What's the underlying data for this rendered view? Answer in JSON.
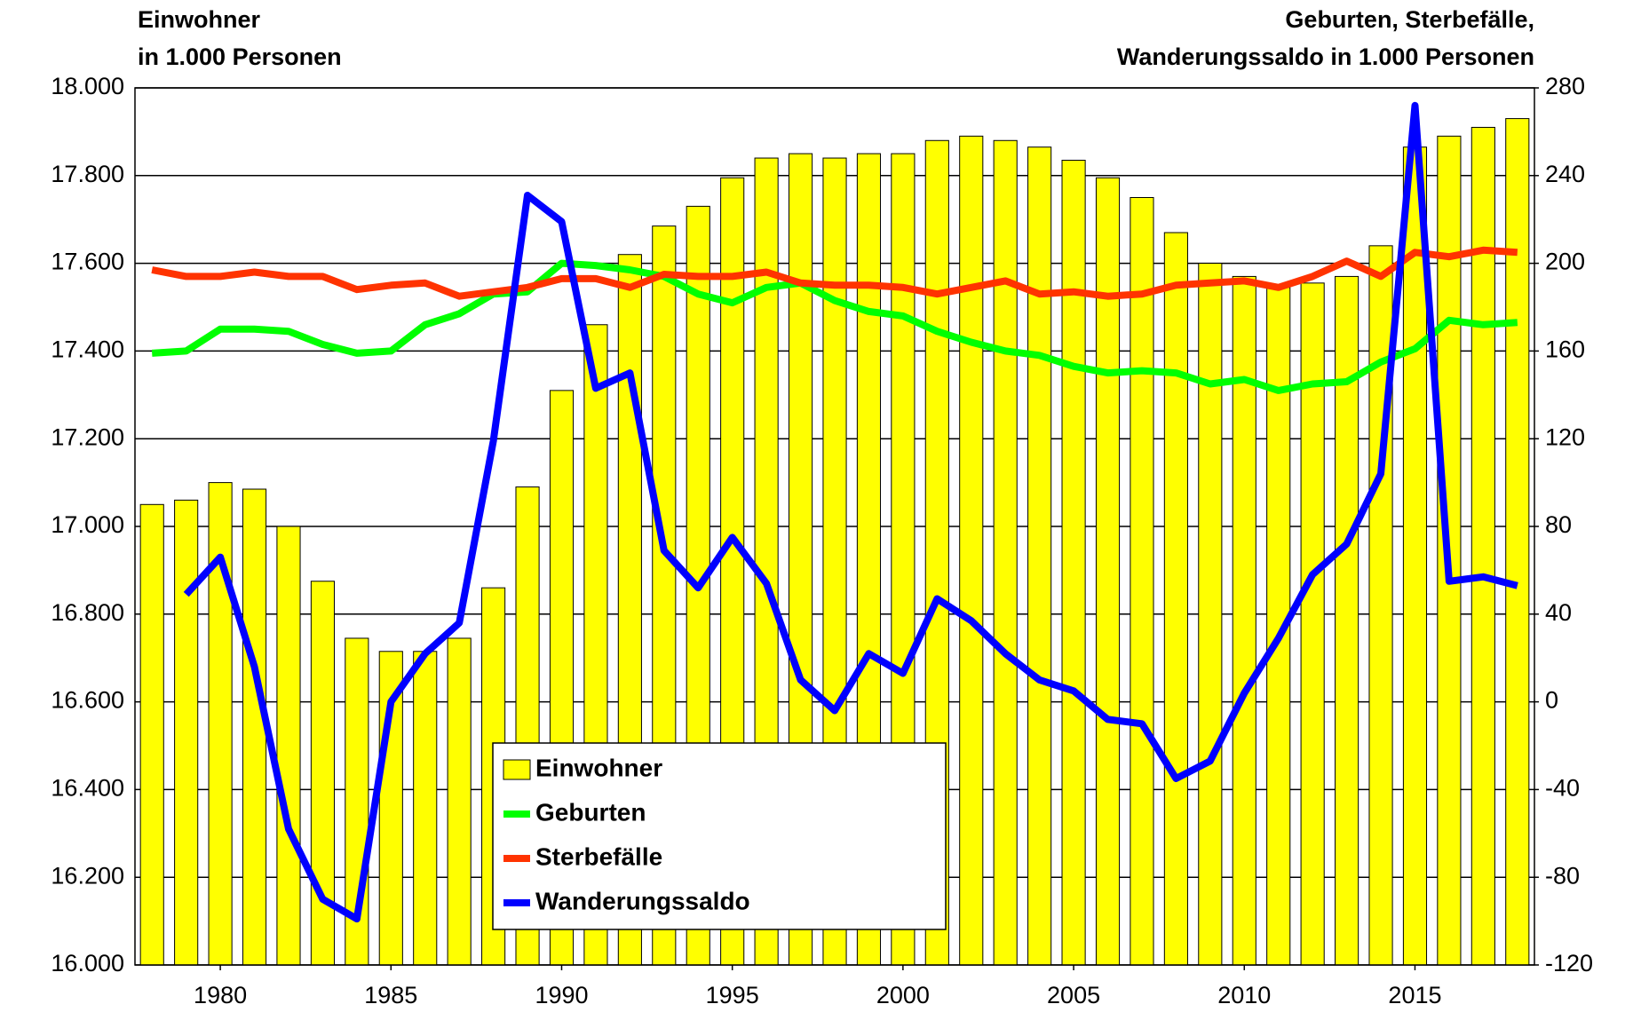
{
  "chart_data": {
    "type": "bar",
    "y_label": [
      "Einwohner",
      "in 1.000 Personen"
    ],
    "y2_label": [
      "Geburten, Sterbefälle,",
      "Wanderungssaldo in 1.000 Personen"
    ],
    "x": [
      1978,
      1979,
      1980,
      1981,
      1982,
      1983,
      1984,
      1985,
      1986,
      1987,
      1988,
      1989,
      1990,
      1991,
      1992,
      1993,
      1994,
      1995,
      1996,
      1997,
      1998,
      1999,
      2000,
      2001,
      2002,
      2003,
      2004,
      2005,
      2006,
      2007,
      2008,
      2009,
      2010,
      2011,
      2012,
      2013,
      2014,
      2015,
      2016,
      2017,
      2018
    ],
    "xlim": [
      1977.5,
      2018.5
    ],
    "xticks": [
      1980,
      1985,
      1990,
      1995,
      2000,
      2005,
      2010,
      2015
    ],
    "ylim": [
      16000,
      18000
    ],
    "yticks": [
      {
        "value": 16000,
        "label": "16.000"
      },
      {
        "value": 16200,
        "label": "16.200"
      },
      {
        "value": 16400,
        "label": "16.400"
      },
      {
        "value": 16600,
        "label": "16.600"
      },
      {
        "value": 16800,
        "label": "16.800"
      },
      {
        "value": 17000,
        "label": "17.000"
      },
      {
        "value": 17200,
        "label": "17.200"
      },
      {
        "value": 17400,
        "label": "17.400"
      },
      {
        "value": 17600,
        "label": "17.600"
      },
      {
        "value": 17800,
        "label": "17.800"
      },
      {
        "value": 18000,
        "label": "18.000"
      }
    ],
    "y2lim": [
      -120,
      280
    ],
    "y2ticks": [
      -120,
      -80,
      -40,
      0,
      40,
      80,
      120,
      160,
      200,
      240,
      280
    ],
    "grid": true,
    "legend": "lower center",
    "series": [
      {
        "name": "Einwohner",
        "type": "bar",
        "color": "#ffff00",
        "values": [
          17050,
          17060,
          17100,
          17085,
          17000,
          16875,
          16745,
          16715,
          16715,
          16745,
          16860,
          17090,
          17310,
          17460,
          17620,
          17685,
          17730,
          17795,
          17840,
          17850,
          17840,
          17850,
          17850,
          17880,
          17890,
          17880,
          17865,
          17835,
          17795,
          17750,
          17670,
          17600,
          17570,
          17545,
          17555,
          17570,
          17640,
          17865,
          17890,
          17910,
          17930
        ]
      },
      {
        "name": "Geburten",
        "type": "line",
        "axis": "y2",
        "color": "#00ff00",
        "values": [
          159,
          160,
          170,
          170,
          169,
          163,
          159,
          160,
          172,
          177,
          186,
          187,
          200,
          199,
          197,
          194,
          186,
          182,
          189,
          191,
          183,
          178,
          176,
          169,
          164,
          160,
          158,
          153,
          150,
          151,
          150,
          145,
          147,
          142,
          145,
          146,
          155,
          161,
          174,
          172,
          173
        ]
      },
      {
        "name": "Sterbefälle",
        "type": "line",
        "axis": "y2",
        "color": "#ff3300",
        "values": [
          197,
          194,
          194,
          196,
          194,
          194,
          188,
          190,
          191,
          185,
          187,
          189,
          193,
          193,
          189,
          195,
          194,
          194,
          196,
          191,
          190,
          190,
          189,
          186,
          189,
          192,
          186,
          187,
          185,
          186,
          190,
          191,
          192,
          189,
          194,
          201,
          194,
          205,
          203,
          206,
          205
        ]
      },
      {
        "name": "Wanderungssaldo",
        "type": "line",
        "axis": "y2",
        "color": "#0000ff",
        "values": [
          null,
          49,
          66,
          16,
          -58,
          -90,
          -99,
          0,
          22,
          36,
          119,
          231,
          219,
          143,
          150,
          69,
          52,
          75,
          54,
          10,
          -4,
          22,
          13,
          47,
          37,
          22,
          10,
          5,
          -8,
          -10,
          -35,
          -27,
          4,
          29,
          58,
          72,
          104,
          272,
          55,
          57,
          53
        ]
      }
    ]
  }
}
